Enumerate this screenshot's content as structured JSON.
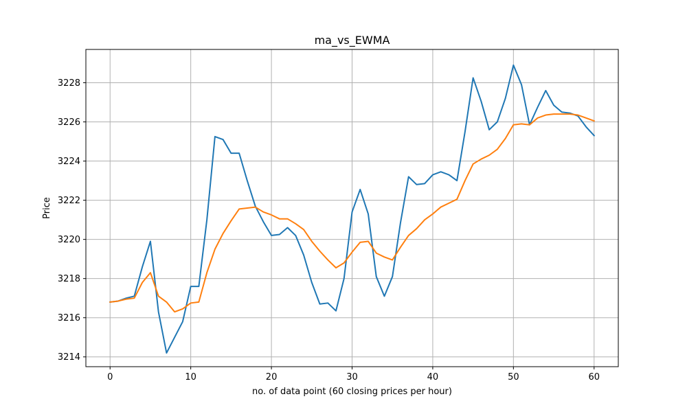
{
  "chart_data": {
    "type": "line",
    "title": "ma_vs_EWMA",
    "xlabel": "no. of data point (60 closing prices per hour)",
    "ylabel": "Price",
    "xlim": [
      -3,
      63
    ],
    "ylim": [
      3213.5,
      3229.7
    ],
    "xticks": [
      0,
      10,
      20,
      30,
      40,
      50,
      60
    ],
    "yticks": [
      3214,
      3216,
      3218,
      3220,
      3222,
      3224,
      3226,
      3228
    ],
    "grid": true,
    "colors": {
      "series_1": "#1f77b4",
      "series_2": "#ff7f0e",
      "grid": "#b0b0b0"
    },
    "x": [
      0,
      1,
      2,
      3,
      4,
      5,
      6,
      7,
      8,
      9,
      10,
      11,
      12,
      13,
      14,
      15,
      16,
      17,
      18,
      19,
      20,
      21,
      22,
      23,
      24,
      25,
      26,
      27,
      28,
      29,
      30,
      31,
      32,
      33,
      34,
      35,
      36,
      37,
      38,
      39,
      40,
      41,
      42,
      43,
      44,
      45,
      46,
      47,
      48,
      49,
      50,
      51,
      52,
      53,
      54,
      55,
      56,
      57,
      58,
      59,
      60
    ],
    "series": [
      {
        "values": [
          3216.8,
          3216.85,
          3217.0,
          3217.1,
          3218.6,
          3219.9,
          3216.3,
          3214.2,
          3215.0,
          3215.8,
          3217.6,
          3217.6,
          3221.0,
          3225.25,
          3225.1,
          3224.4,
          3224.4,
          3223.0,
          3221.7,
          3220.9,
          3220.2,
          3220.25,
          3220.6,
          3220.2,
          3219.2,
          3217.8,
          3216.7,
          3216.75,
          3216.35,
          3218.0,
          3221.4,
          3222.55,
          3221.3,
          3218.1,
          3217.1,
          3218.1,
          3220.85,
          3223.2,
          3222.8,
          3222.85,
          3223.3,
          3223.45,
          3223.3,
          3223.0,
          3225.5,
          3228.25,
          3227.05,
          3225.6,
          3226.0,
          3227.2,
          3228.9,
          3227.9,
          3225.85,
          3226.75,
          3227.6,
          3226.85,
          3226.5,
          3226.45,
          3226.3,
          3225.75,
          3225.3
        ]
      },
      {
        "values": [
          3216.8,
          3216.85,
          3216.95,
          3217.0,
          3217.8,
          3218.3,
          3217.1,
          3216.8,
          3216.3,
          3216.45,
          3216.75,
          3216.8,
          3218.3,
          3219.5,
          3220.3,
          3220.95,
          3221.55,
          3221.6,
          3221.65,
          3221.4,
          3221.25,
          3221.05,
          3221.05,
          3220.8,
          3220.5,
          3219.9,
          3219.4,
          3218.95,
          3218.55,
          3218.8,
          3219.35,
          3219.85,
          3219.9,
          3219.3,
          3219.1,
          3218.95,
          3219.6,
          3220.2,
          3220.55,
          3221.0,
          3221.3,
          3221.65,
          3221.85,
          3222.05,
          3223.0,
          3223.85,
          3224.1,
          3224.3,
          3224.6,
          3225.15,
          3225.85,
          3225.9,
          3225.85,
          3226.2,
          3226.35,
          3226.4,
          3226.4,
          3226.4,
          3226.35,
          3226.2,
          3226.05
        ]
      }
    ]
  }
}
